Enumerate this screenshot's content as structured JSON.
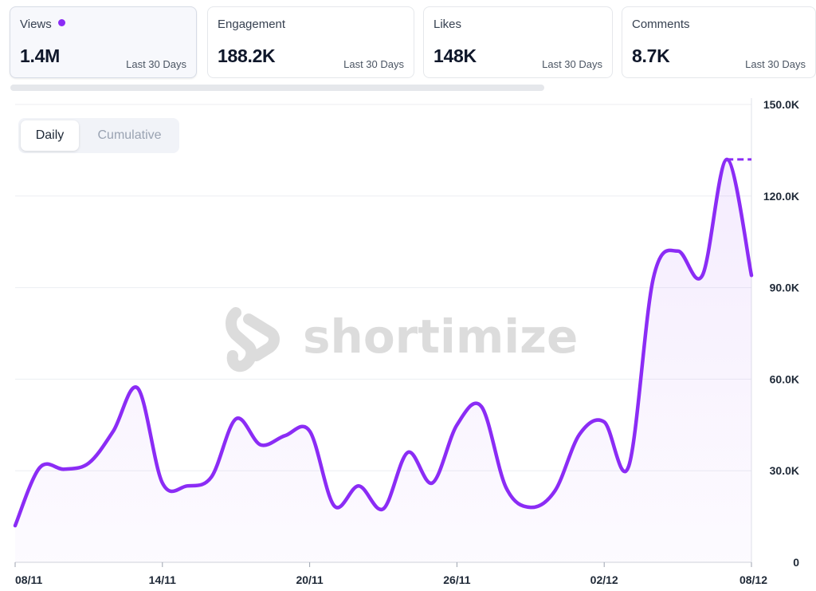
{
  "stats": [
    {
      "label": "Views",
      "value": "1.4M",
      "period": "Last 30 Days",
      "active": true
    },
    {
      "label": "Engagement",
      "value": "188.2K",
      "period": "Last 30 Days",
      "active": false
    },
    {
      "label": "Likes",
      "value": "148K",
      "period": "Last 30 Days",
      "active": false
    },
    {
      "label": "Comments",
      "value": "8.7K",
      "period": "Last 30 Days",
      "active": false
    }
  ],
  "toggle": {
    "daily": "Daily",
    "cumulative": "Cumulative",
    "selected": "Daily"
  },
  "watermark": "shortimize",
  "colors": {
    "accent": "#8b2cf5",
    "grid": "#eceef2",
    "axis_text": "#1f2937"
  },
  "chart_data": {
    "type": "area",
    "x": [
      "08/11",
      "09/11",
      "10/11",
      "11/11",
      "12/11",
      "13/11",
      "14/11",
      "15/11",
      "16/11",
      "17/11",
      "18/11",
      "19/11",
      "20/11",
      "21/11",
      "22/11",
      "23/11",
      "24/11",
      "25/11",
      "26/11",
      "27/11",
      "28/11",
      "29/11",
      "30/11",
      "01/12",
      "02/12",
      "03/12",
      "04/12",
      "05/12",
      "06/12",
      "07/12",
      "08/12"
    ],
    "series": [
      {
        "values": [
          12000,
          31000,
          30500,
          32500,
          43000,
          57000,
          26000,
          25000,
          28000,
          47000,
          38500,
          41500,
          43000,
          18500,
          25000,
          17500,
          36000,
          26000,
          45000,
          51000,
          24500,
          18000,
          23500,
          42000,
          46000,
          31500,
          93000,
          102000,
          94000,
          132000,
          94000
        ]
      }
    ],
    "x_tick_labels": [
      "08/11",
      "14/11",
      "20/11",
      "26/11",
      "02/12",
      "08/12"
    ],
    "y_tick_labels": [
      "0",
      "30.0K",
      "60.0K",
      "90.0K",
      "120.0K",
      "150.0K"
    ],
    "ylim": [
      0,
      150000
    ],
    "grid": true,
    "y_axis_side": "right",
    "peak_marker": "dashed"
  }
}
